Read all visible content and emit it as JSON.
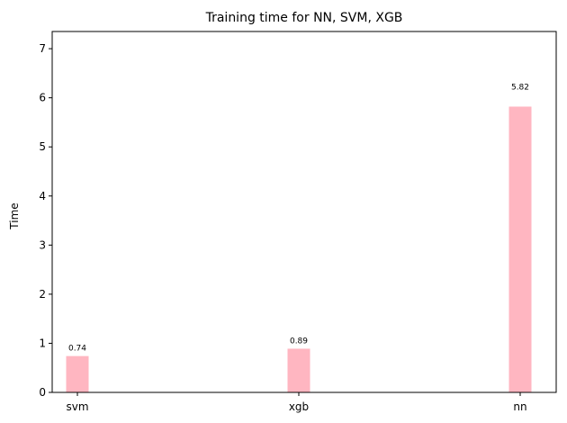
{
  "chart_data": {
    "type": "bar",
    "title": "Training time for NN, SVM, XGB",
    "xlabel": "",
    "ylabel": "Time",
    "categories": [
      "svm",
      "xgb",
      "nn"
    ],
    "values": [
      0.74,
      0.89,
      5.82
    ],
    "data_labels": [
      "0.74",
      "0.89",
      "5.82"
    ],
    "ylim": [
      0,
      7.35
    ],
    "yticks": [
      0,
      1,
      2,
      3,
      4,
      5,
      6,
      7
    ],
    "bar_color": "#ffb6c1",
    "grid": false,
    "legend": "none"
  }
}
